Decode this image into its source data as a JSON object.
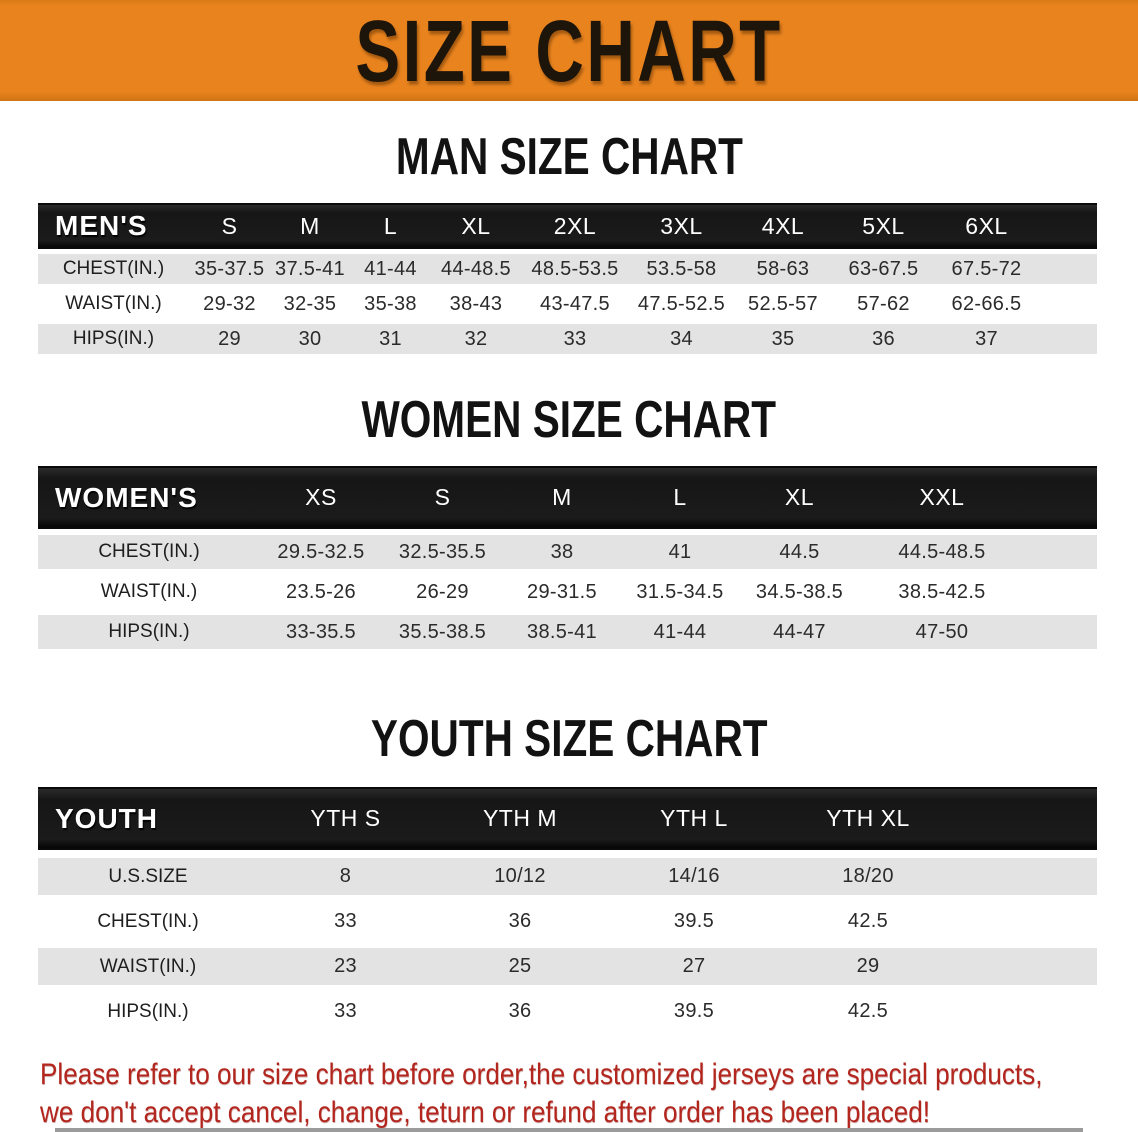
{
  "banner": {
    "title": "SIZE CHART"
  },
  "colors": {
    "banner_bg": "#e8831e",
    "band_bg": "#1b1b1b",
    "row_gray": "#e3e3e3",
    "footer_red": "#b3261e"
  },
  "sections": [
    {
      "title": "MAN SIZE CHART",
      "table": {
        "header_label": "MEN'S",
        "columns": [
          "S",
          "M",
          "L",
          "XL",
          "2XL",
          "3XL",
          "4XL",
          "5XL",
          "6XL"
        ],
        "rows": [
          {
            "label": "CHEST(IN.)",
            "values": [
              "35-37.5",
              "37.5-41",
              "41-44",
              "44-48.5",
              "48.5-53.5",
              "53.5-58",
              "58-63",
              "63-67.5",
              "67.5-72"
            ]
          },
          {
            "label": "WAIST(IN.)",
            "values": [
              "29-32",
              "32-35",
              "35-38",
              "38-43",
              "43-47.5",
              "47.5-52.5",
              "52.5-57",
              "57-62",
              "62-66.5"
            ]
          },
          {
            "label": "HIPS(IN.)",
            "values": [
              "29",
              "30",
              "31",
              "32",
              "33",
              "34",
              "35",
              "36",
              "37"
            ]
          }
        ]
      }
    },
    {
      "title": "WOMEN SIZE CHART",
      "table": {
        "header_label": "WOMEN'S",
        "columns": [
          "XS",
          "S",
          "M",
          "L",
          "XL",
          "XXL"
        ],
        "rows": [
          {
            "label": "CHEST(IN.)",
            "values": [
              "29.5-32.5",
              "32.5-35.5",
              "38",
              "41",
              "44.5",
              "44.5-48.5"
            ]
          },
          {
            "label": "WAIST(IN.)",
            "values": [
              "23.5-26",
              "26-29",
              "29-31.5",
              "31.5-34.5",
              "34.5-38.5",
              "38.5-42.5"
            ]
          },
          {
            "label": "HIPS(IN.)",
            "values": [
              "33-35.5",
              "35.5-38.5",
              "38.5-41",
              "41-44",
              "44-47",
              "47-50"
            ]
          }
        ]
      }
    },
    {
      "title": "YOUTH SIZE CHART",
      "table": {
        "header_label": "YOUTH",
        "columns": [
          "YTH S",
          "YTH M",
          "YTH L",
          "YTH XL"
        ],
        "rows": [
          {
            "label": "U.S.SIZE",
            "values": [
              "8",
              "10/12",
              "14/16",
              "18/20"
            ]
          },
          {
            "label": "CHEST(IN.)",
            "values": [
              "33",
              "36",
              "39.5",
              "42.5"
            ]
          },
          {
            "label": "WAIST(IN.)",
            "values": [
              "23",
              "25",
              "27",
              "29"
            ]
          },
          {
            "label": "HIPS(IN.)",
            "values": [
              "33",
              "36",
              "39.5",
              "42.5"
            ]
          }
        ]
      }
    }
  ],
  "footer": {
    "line1": "Please refer to our size chart before order,the customized jerseys are special products,",
    "line2": "we don't accept cancel, change, teturn or refund after order has been placed!"
  }
}
